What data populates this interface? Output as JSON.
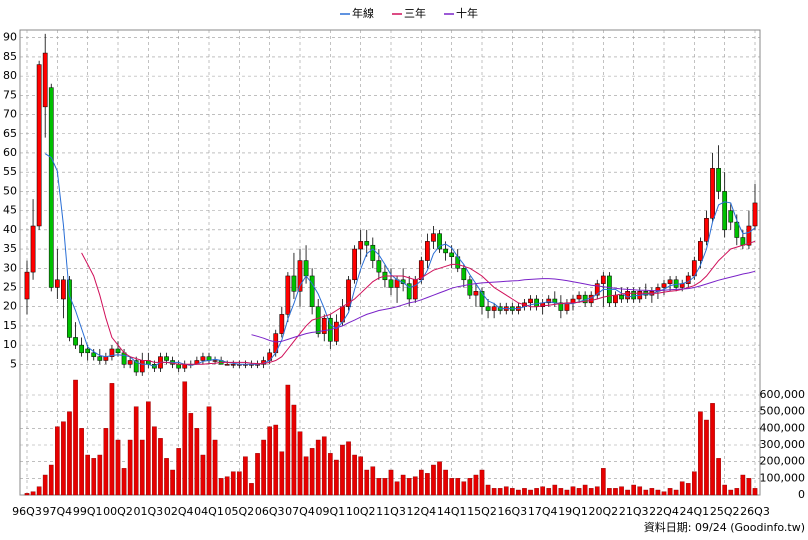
{
  "chart_data": {
    "type": "candlestick",
    "legend_position": "top",
    "grid": true,
    "up_color": "#ff0000",
    "down_color": "#00c000",
    "volume_color": "#e60000",
    "note": "資料日期: 09/24 (Goodinfo.tw)",
    "categories": [
      "96Q3",
      null,
      null,
      null,
      null,
      "97Q4",
      null,
      null,
      null,
      null,
      "99Q1",
      null,
      null,
      null,
      null,
      "00Q2",
      null,
      null,
      null,
      null,
      "01Q3",
      null,
      null,
      null,
      null,
      "02Q4",
      null,
      null,
      null,
      null,
      "04Q1",
      null,
      null,
      null,
      null,
      "05Q2",
      null,
      null,
      null,
      null,
      "06Q3",
      null,
      null,
      null,
      null,
      "07Q4",
      null,
      null,
      null,
      null,
      "09Q1",
      null,
      null,
      null,
      null,
      "10Q2",
      null,
      null,
      null,
      null,
      "11Q3",
      null,
      null,
      null,
      null,
      "12Q4",
      null,
      null,
      null,
      null,
      "14Q1",
      null,
      null,
      null,
      null,
      "15Q2",
      null,
      null,
      null,
      null,
      "16Q3",
      null,
      null,
      null,
      null,
      "17Q4",
      null,
      null,
      null,
      null,
      "19Q1",
      null,
      null,
      null,
      null,
      "20Q2",
      null,
      null,
      null,
      null,
      "21Q3",
      null,
      null,
      null,
      null,
      "22Q4",
      null,
      null,
      null,
      null,
      "24Q1",
      null,
      null,
      null,
      null,
      "25Q2",
      null,
      null,
      null,
      null,
      "26Q3"
    ],
    "open": [
      22,
      29,
      41,
      72,
      77,
      25,
      22,
      27,
      12,
      10,
      9,
      8,
      7,
      6,
      7,
      9,
      8,
      5,
      6,
      3,
      6,
      5,
      4,
      7,
      6,
      5,
      4,
      5,
      5,
      6,
      7,
      6,
      6,
      5,
      5,
      5,
      5,
      5,
      5,
      5,
      6,
      8,
      13,
      18,
      28,
      24,
      32,
      28,
      20,
      13,
      17,
      11,
      16,
      20,
      27,
      35,
      37,
      36,
      32,
      29,
      27,
      25,
      27,
      26,
      22,
      27,
      32,
      37,
      39,
      35,
      34,
      33,
      30,
      27,
      23,
      24,
      20,
      19,
      20,
      19,
      20,
      19,
      20,
      21,
      22,
      20,
      21,
      22,
      21,
      19,
      21,
      22,
      23,
      21,
      23,
      26,
      28,
      21,
      23,
      22,
      24,
      22,
      24,
      23,
      24,
      25,
      26,
      27,
      25,
      26,
      28,
      32,
      37,
      43,
      56,
      50,
      45,
      42,
      38,
      36,
      41
    ],
    "high": [
      32,
      48,
      84,
      91,
      78,
      35,
      28,
      28,
      16,
      12,
      10,
      9,
      9,
      8,
      10,
      11,
      9,
      7,
      7,
      8,
      8,
      6,
      8,
      8,
      7,
      6,
      6,
      6,
      7,
      8,
      8,
      7,
      7,
      6,
      6,
      6,
      6,
      6,
      6,
      7,
      9,
      14,
      20,
      29,
      34,
      35,
      36,
      30,
      22,
      18,
      18,
      18,
      22,
      28,
      36,
      40,
      40,
      38,
      35,
      31,
      30,
      28,
      30,
      28,
      28,
      33,
      39,
      41,
      40,
      37,
      36,
      35,
      31,
      28,
      26,
      25,
      22,
      21,
      21,
      21,
      21,
      21,
      22,
      23,
      23,
      22,
      23,
      24,
      23,
      22,
      23,
      24,
      24,
      24,
      27,
      29,
      29,
      24,
      25,
      25,
      25,
      25,
      26,
      25,
      26,
      27,
      28,
      28,
      27,
      29,
      33,
      38,
      45,
      60,
      62,
      55,
      47,
      44,
      40,
      45,
      52
    ],
    "low": [
      18,
      27,
      40,
      64,
      24,
      22,
      17,
      11,
      9,
      7,
      6,
      6,
      5,
      5,
      6,
      7,
      4,
      4,
      2,
      2,
      4,
      3,
      3,
      5,
      4,
      3,
      3,
      4,
      5,
      5,
      5,
      5,
      5,
      5,
      4,
      4,
      4,
      4,
      4,
      4,
      5,
      7,
      12,
      16,
      22,
      20,
      26,
      18,
      12,
      11,
      9,
      10,
      15,
      19,
      26,
      31,
      33,
      30,
      27,
      25,
      23,
      21,
      24,
      20,
      21,
      26,
      30,
      35,
      34,
      32,
      30,
      29,
      25,
      22,
      20,
      18,
      17,
      17,
      18,
      18,
      18,
      18,
      19,
      19,
      19,
      18,
      20,
      20,
      17,
      18,
      19,
      21,
      20,
      20,
      22,
      20,
      20,
      20,
      21,
      21,
      21,
      21,
      22,
      21,
      22,
      23,
      24,
      24,
      24,
      25,
      27,
      30,
      36,
      42,
      48,
      38,
      40,
      36,
      35,
      35,
      40
    ],
    "close": [
      29,
      41,
      83,
      86,
      25,
      27,
      27,
      12,
      10,
      8,
      8,
      7,
      6,
      7,
      9,
      8,
      5,
      6,
      3,
      6,
      5,
      4,
      7,
      6,
      5,
      4,
      5,
      5,
      6,
      7,
      6,
      6,
      5,
      5,
      5,
      5,
      5,
      5,
      5,
      6,
      8,
      13,
      18,
      28,
      24,
      32,
      28,
      20,
      13,
      17,
      11,
      16,
      20,
      27,
      35,
      37,
      36,
      32,
      29,
      27,
      25,
      27,
      26,
      22,
      27,
      32,
      37,
      39,
      35,
      34,
      33,
      30,
      27,
      23,
      24,
      20,
      19,
      20,
      19,
      20,
      19,
      20,
      21,
      22,
      20,
      21,
      22,
      21,
      19,
      21,
      22,
      23,
      21,
      23,
      26,
      28,
      21,
      23,
      22,
      24,
      22,
      24,
      23,
      24,
      25,
      26,
      27,
      25,
      26,
      28,
      32,
      37,
      43,
      56,
      50,
      40,
      42,
      38,
      36,
      41,
      47
    ],
    "volume": [
      10000,
      20000,
      50000,
      120000,
      180000,
      410000,
      440000,
      500000,
      690000,
      400000,
      240000,
      220000,
      240000,
      400000,
      670000,
      330000,
      160000,
      330000,
      530000,
      330000,
      560000,
      410000,
      340000,
      220000,
      150000,
      280000,
      680000,
      490000,
      400000,
      240000,
      530000,
      330000,
      100000,
      110000,
      140000,
      140000,
      230000,
      70000,
      250000,
      330000,
      410000,
      420000,
      260000,
      660000,
      540000,
      380000,
      230000,
      280000,
      330000,
      350000,
      250000,
      210000,
      300000,
      320000,
      240000,
      230000,
      150000,
      170000,
      100000,
      100000,
      150000,
      80000,
      120000,
      100000,
      110000,
      150000,
      130000,
      180000,
      200000,
      150000,
      100000,
      100000,
      80000,
      100000,
      120000,
      150000,
      60000,
      40000,
      40000,
      50000,
      40000,
      30000,
      40000,
      30000,
      40000,
      50000,
      40000,
      60000,
      40000,
      30000,
      50000,
      40000,
      60000,
      40000,
      50000,
      160000,
      40000,
      40000,
      50000,
      30000,
      60000,
      50000,
      30000,
      40000,
      30000,
      20000,
      40000,
      30000,
      80000,
      70000,
      140000,
      500000,
      450000,
      550000,
      220000,
      60000,
      30000,
      40000,
      120000,
      100000,
      40000
    ],
    "series": [
      {
        "name": "年線",
        "color": "#2a6fd6",
        "values": [
          null,
          null,
          null,
          59.8,
          58.8,
          55.3,
          41.3,
          22.8,
          19,
          14.3,
          9.5,
          8.3,
          7.3,
          7,
          7.3,
          7.5,
          7.3,
          7,
          5.5,
          5,
          5,
          4.5,
          5.5,
          5.5,
          5.5,
          5.5,
          5,
          4.8,
          5,
          5.8,
          6,
          6.3,
          6,
          5.5,
          5.3,
          5,
          5,
          5,
          5,
          5.3,
          6,
          8,
          11.3,
          16.8,
          20.8,
          25.5,
          28,
          26,
          23.3,
          19.5,
          15.3,
          14.3,
          16,
          18.5,
          24.5,
          29.8,
          33.8,
          35,
          33.5,
          31,
          28.3,
          27,
          26.3,
          25,
          25.5,
          26.8,
          29.5,
          33.8,
          35.8,
          36.3,
          35.3,
          33,
          31,
          28.3,
          26,
          23.5,
          21.5,
          20.8,
          19.5,
          19.5,
          19.5,
          19.5,
          20,
          20.5,
          20.8,
          21,
          21.3,
          21,
          20.8,
          20.8,
          20.8,
          21.3,
          21.8,
          22.3,
          23.3,
          24.5,
          24.5,
          24.5,
          23.5,
          22.5,
          22.8,
          23,
          23.3,
          23.3,
          24,
          24.5,
          25.5,
          25.8,
          26,
          26.5,
          27.8,
          30.8,
          35,
          42,
          46.5,
          47.3,
          47,
          42.5,
          39,
          39.3,
          40.5
        ]
      },
      {
        "name": "三年",
        "color": "#d0105a",
        "values": [
          null,
          null,
          null,
          null,
          null,
          null,
          null,
          null,
          null,
          34,
          31,
          28,
          23,
          17,
          12,
          10,
          8,
          7,
          6.5,
          6,
          6,
          5.5,
          5.5,
          5.5,
          5.3,
          5,
          5,
          5,
          5,
          5,
          5.2,
          5.3,
          5.5,
          5.5,
          5.5,
          5.5,
          5.5,
          5.3,
          5.2,
          5.2,
          5.5,
          6,
          7,
          9,
          11,
          13,
          15,
          16.5,
          17,
          17.5,
          18,
          19,
          20,
          21,
          22,
          23.5,
          25,
          26.5,
          27.5,
          28,
          28,
          28,
          28,
          27.5,
          27,
          27.5,
          28.5,
          29.5,
          30,
          30.5,
          31,
          31,
          30.5,
          30,
          29,
          28,
          26.5,
          25,
          24,
          23,
          22,
          21,
          20.5,
          20,
          20,
          20.2,
          20.4,
          20.6,
          20.8,
          21,
          21,
          21.2,
          21.4,
          21.6,
          22,
          22.5,
          22.8,
          23,
          23.3,
          23.5,
          23.5,
          23.5,
          23.5,
          23.5,
          23.5,
          23.8,
          24,
          24.2,
          24.5,
          25,
          25.5,
          26.5,
          28,
          30,
          32,
          33.5,
          35,
          35.5,
          36,
          36.5,
          37
        ]
      },
      {
        "name": "十年",
        "color": "#7a22c8",
        "values": [
          null,
          null,
          null,
          null,
          null,
          null,
          null,
          null,
          null,
          null,
          null,
          null,
          null,
          null,
          null,
          null,
          null,
          null,
          null,
          null,
          null,
          null,
          null,
          null,
          null,
          null,
          null,
          null,
          null,
          null,
          null,
          null,
          null,
          null,
          null,
          null,
          null,
          12.7,
          12.3,
          11.8,
          11.2,
          10.8,
          11,
          11.5,
          12,
          12.5,
          13,
          13.3,
          13.5,
          13.8,
          14,
          14.5,
          15,
          15.8,
          16.5,
          17.3,
          18,
          18.5,
          19,
          19.3,
          19.6,
          20,
          20.5,
          21,
          21.3,
          21.8,
          22.4,
          23,
          23.6,
          24.2,
          24.8,
          25.2,
          25.5,
          25.8,
          26,
          26.2,
          26.3,
          26.4,
          26.5,
          26.6,
          26.7,
          26.8,
          27,
          27.1,
          27.2,
          27.3,
          27.3,
          27.2,
          27,
          26.8,
          26.5,
          26.2,
          25.9,
          25.6,
          25.4,
          25.2,
          25,
          24.8,
          24.6,
          24.5,
          24.4,
          24.3,
          24.3,
          24.2,
          24.2,
          24.3,
          24.4,
          24.5,
          24.6,
          24.7,
          25,
          25.4,
          25.9,
          26.4,
          26.9,
          27.3,
          27.7,
          28.1,
          28.5,
          28.8,
          29.2
        ]
      }
    ],
    "ylim": [
      -29,
      92
    ],
    "yticks": [
      5,
      10,
      15,
      20,
      25,
      30,
      35,
      40,
      45,
      50,
      55,
      60,
      65,
      70,
      75,
      80,
      85,
      90
    ],
    "y2lim": [
      0,
      2790000
    ],
    "y2ticks": [
      0,
      {
        "value": 100000,
        "label": "100,000"
      },
      {
        "value": 200000,
        "label": "200,000"
      },
      {
        "value": 300000,
        "label": "300,000"
      },
      {
        "value": 400000,
        "label": "400,000"
      },
      {
        "value": 500000,
        "label": "500,000"
      },
      {
        "value": 600000,
        "label": "600,000"
      }
    ]
  }
}
